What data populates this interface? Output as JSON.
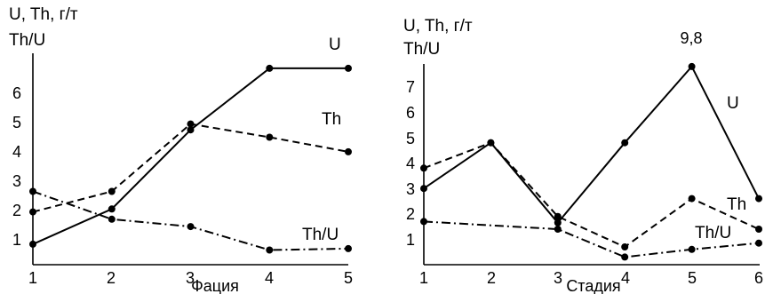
{
  "chart_data": [
    {
      "type": "line",
      "ylabel_lines": [
        "U, Th, г/т",
        "Th/U"
      ],
      "xlabel": "Фация",
      "x": [
        1,
        2,
        3,
        4,
        5
      ],
      "x_ticks": [
        "1",
        "2",
        "3",
        "4",
        "5"
      ],
      "y_ticks": [
        "1",
        "2",
        "3",
        "4",
        "5",
        "6"
      ],
      "xlim": [
        1,
        5
      ],
      "ylim": [
        0,
        6.9
      ],
      "grid": false,
      "series": [
        {
          "name": "U",
          "style": "solid",
          "values": [
            0.7,
            1.9,
            4.6,
            6.7,
            6.7
          ]
        },
        {
          "name": "Th",
          "style": "dashed",
          "values": [
            1.8,
            2.5,
            4.8,
            4.35,
            3.85
          ]
        },
        {
          "name": "Th/U",
          "style": "dashdot",
          "values": [
            2.5,
            1.55,
            1.3,
            0.5,
            0.55
          ]
        }
      ],
      "annotations": []
    },
    {
      "type": "line",
      "ylabel_lines": [
        "U, Th, г/т",
        "Th/U"
      ],
      "xlabel": "Стадия",
      "x": [
        1,
        2,
        3,
        4,
        5,
        6
      ],
      "x_ticks": [
        "1",
        "2",
        "3",
        "4",
        "5",
        "6"
      ],
      "y_ticks": [
        "1",
        "2",
        "3",
        "4",
        "5",
        "6",
        "7"
      ],
      "xlim": [
        1,
        6
      ],
      "ylim": [
        0,
        7.9
      ],
      "grid": false,
      "series": [
        {
          "name": "U",
          "style": "solid",
          "values": [
            3.0,
            4.8,
            1.65,
            4.8,
            7.8,
            2.6
          ]
        },
        {
          "name": "Th",
          "style": "dashed",
          "values": [
            3.8,
            4.8,
            1.9,
            0.7,
            2.6,
            1.4
          ]
        },
        {
          "name": "Th/U",
          "style": "dashdot",
          "values": [
            1.7,
            null,
            1.4,
            0.3,
            0.6,
            0.85
          ]
        }
      ],
      "annotations": [
        {
          "text": "9,8",
          "x": 5,
          "y": 7.8
        }
      ]
    }
  ]
}
